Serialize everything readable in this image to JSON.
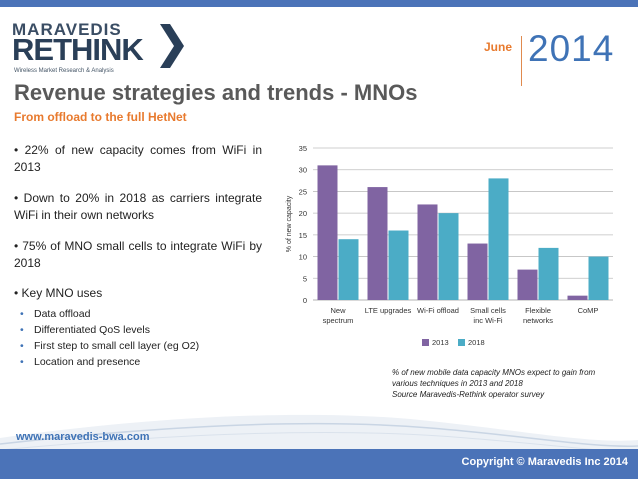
{
  "header": {
    "logo_line1": "MARAVEDIS",
    "logo_line2": "RETHINK",
    "logo_tagline": "Wireless Market Research & Analysis",
    "month": "June",
    "year": "2014"
  },
  "slide": {
    "title": "Revenue strategies and trends - MNOs",
    "subtitle": "From offload to the full HetNet",
    "bullets": [
      "• 22% of new capacity comes from WiFi in 2013",
      "• Down to 20% in 2018 as carriers integrate WiFi in their own networks",
      "• 75% of MNO small cells to integrate WiFi by 2018",
      "• Key MNO uses"
    ],
    "subbullets": [
      "Data offload",
      "Differentiated QoS levels",
      "First step to small cell layer (eg O2)",
      "Location and presence"
    ],
    "caption_lines": [
      "% of new mobile data capacity MNOs expect to gain from",
      "various techniques in 2013 and 2018",
      "Source Maravedis-Rethink operator survey"
    ]
  },
  "footer": {
    "url": "www.maravedis-bwa.com",
    "copyright": "Copyright © Maravedis Inc 2014"
  },
  "colors": {
    "brand_blue": "#3f73b6",
    "accent_orange": "#e87a2e",
    "series_2013": "#8064a2",
    "series_2018": "#4bacc6"
  },
  "chart_data": {
    "type": "bar",
    "categories": [
      [
        "New",
        "spectrum"
      ],
      [
        "LTE upgrades"
      ],
      [
        "Wi-Fi offload"
      ],
      [
        "Small cells",
        "inc Wi-Fi"
      ],
      [
        "Flexible",
        "networks"
      ],
      [
        "CoMP"
      ]
    ],
    "series": [
      {
        "name": "2013",
        "values": [
          31,
          26,
          22,
          13,
          7,
          1
        ]
      },
      {
        "name": "2018",
        "values": [
          14,
          16,
          20,
          28,
          12,
          10
        ]
      }
    ],
    "ylabel": "% of new capacity",
    "ylim": [
      0,
      35
    ],
    "yticks": [
      0,
      5,
      10,
      15,
      20,
      25,
      30,
      35
    ],
    "grid": true,
    "legend": "bottom"
  }
}
